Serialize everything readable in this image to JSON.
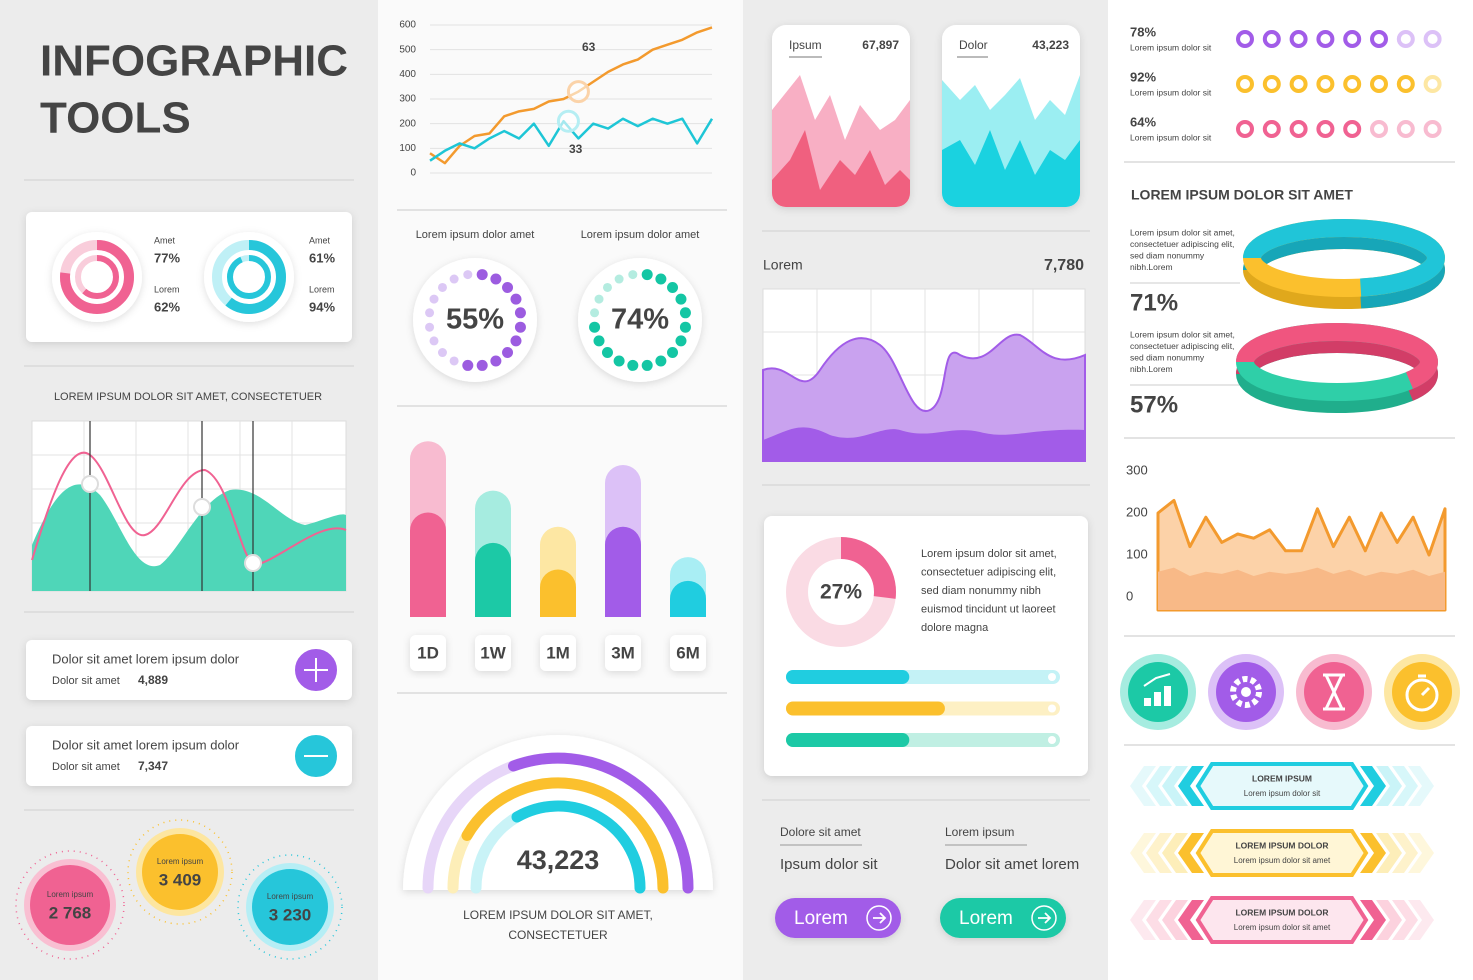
{
  "header": {
    "title_lines": [
      "INFOGRAPHIC",
      "TOOLS"
    ]
  },
  "ring_card": {
    "items": [
      {
        "rings": [
          {
            "label": "Amet",
            "value": 77,
            "value_label": "77%"
          },
          {
            "label": "Lorem",
            "value": 62,
            "value_label": "62%"
          }
        ]
      },
      {
        "rings": [
          {
            "label": "Amet",
            "value": 61,
            "value_label": "61%"
          },
          {
            "label": "Lorem",
            "value": 94,
            "value_label": "94%"
          }
        ]
      }
    ]
  },
  "wave_chart": {
    "title": "LOREM IPSUM DOLOR SIT AMET, CONSECTETUER"
  },
  "stat_rows": [
    {
      "title": "Dolor sit amet lorem ipsum dolor",
      "label": "Dolor sit amet",
      "value": "4,889"
    },
    {
      "title": "Dolor sit amet lorem ipsum dolor",
      "label": "Dolor sit amet",
      "value": "7,347"
    }
  ],
  "bubbles": [
    {
      "label": "Lorem ipsum",
      "value": "2 768"
    },
    {
      "label": "Lorem ipsum",
      "value": "3 409"
    },
    {
      "label": "Lorem ipsum",
      "value": "3 230"
    }
  ],
  "chart_data": [
    {
      "type": "line",
      "categories": [
        null,
        null,
        null,
        null,
        null,
        null,
        null,
        null,
        null,
        null,
        null,
        null,
        null,
        null,
        null,
        null,
        null,
        null,
        null,
        null
      ],
      "series": [
        {
          "color": "#f39a2e",
          "values": [
            80,
            40,
            110,
            150,
            160,
            230,
            250,
            260,
            290,
            300,
            330,
            370,
            410,
            440,
            460,
            500,
            520,
            540,
            570,
            590
          ]
        },
        {
          "color": "#1ec6d6",
          "values": [
            50,
            90,
            120,
            100,
            140,
            170,
            140,
            200,
            110,
            210,
            140,
            200,
            180,
            220,
            190,
            220,
            200,
            220,
            120,
            220
          ]
        }
      ],
      "annotations": [
        "63",
        "33"
      ],
      "ylim": [
        0,
        600
      ],
      "yticks": [
        0,
        100,
        200,
        300,
        400,
        500,
        600
      ],
      "grid": true
    },
    {
      "type": "bar",
      "categories": [
        "1D",
        "1W",
        "1M",
        "3M",
        "6M"
      ],
      "series": [
        {
          "colors": [
            "#f06292",
            "#1cc9a6",
            "#fbc02d",
            "#a25ce8",
            "#20cde0"
          ],
          "values": [
            110,
            78,
            50,
            95,
            38
          ]
        },
        {
          "colors": [
            "#f8bbd0",
            "#a6ece0",
            "#fde7a3",
            "#dcc1f7",
            "#a9eef4"
          ],
          "values": [
            75,
            55,
            45,
            65,
            25
          ]
        }
      ],
      "ylim": [
        0,
        200
      ],
      "stacked": true
    },
    {
      "type": "area",
      "categories": [
        null,
        null,
        null,
        null,
        null,
        null,
        null,
        null,
        null,
        null,
        null,
        null,
        null,
        null,
        null,
        null,
        null,
        null,
        null
      ],
      "series": [
        {
          "color": "#f39a2e",
          "values": [
            200,
            230,
            120,
            190,
            130,
            150,
            140,
            160,
            110,
            110,
            210,
            120,
            190,
            110,
            200,
            130,
            190,
            100,
            210
          ]
        },
        {
          "color": "#f9c79a",
          "values": [
            60,
            70,
            50,
            60,
            55,
            65,
            50,
            60,
            55,
            60,
            70,
            55,
            65,
            50,
            60,
            55,
            65,
            50,
            60
          ]
        }
      ],
      "ylim": [
        0,
        300
      ],
      "yticks": [
        0,
        100,
        200,
        300
      ],
      "grid": false
    }
  ],
  "dot_donuts": [
    {
      "caption": "Lorem ipsum dolor amet",
      "value": 55,
      "value_label": "55%",
      "color": "#9c5ce0",
      "track": "#dcc8f5"
    },
    {
      "caption": "Lorem ipsum dolor amet",
      "value": 74,
      "value_label": "74%",
      "color": "#14c6a4",
      "track": "#b4ece0"
    }
  ],
  "gauge": {
    "value": "43,223",
    "caption_lines": [
      "LOREM IPSUM DOLOR SIT AMET,",
      "CONSECTETUER"
    ]
  },
  "mini_cards": [
    {
      "label": "Ipsum",
      "value": "67,897"
    },
    {
      "label": "Dolor",
      "value": "43,223"
    }
  ],
  "lorem_chart": {
    "label": "Lorem",
    "value": "7,780"
  },
  "donut_card": {
    "value": 27,
    "value_label": "27%",
    "text_lines": [
      "Lorem ipsum dolor sit amet,",
      "consectetuer adipiscing elit,",
      "sed diam nonummy nibh",
      "euismod tincidunt ut laoreet",
      "dolore magna"
    ],
    "bars": [
      45,
      58,
      45
    ]
  },
  "links": [
    {
      "heading": "Dolore sit amet",
      "text": "Ipsum dolor sit",
      "button": "Lorem"
    },
    {
      "heading": "Lorem ipsum",
      "text": "Dolor sit amet lorem",
      "button": "Lorem"
    }
  ],
  "dot_rows": [
    {
      "value": 78,
      "value_label": "78%",
      "caption": "Lorem ipsum dolor sit"
    },
    {
      "value": 92,
      "value_label": "92%",
      "caption": "Lorem ipsum dolor sit"
    },
    {
      "value": 64,
      "value_label": "64%",
      "caption": "Lorem ipsum dolor sit"
    }
  ],
  "ring_section": {
    "title": "LOREM IPSUM DOLOR SIT AMET",
    "items": [
      {
        "text_lines": [
          "Lorem ipsum dolor sit amet,",
          "consectetuer adipiscing elit,",
          "sed diam nonummy",
          "nibh.Lorem"
        ],
        "value": 71,
        "value_label": "71%"
      },
      {
        "text_lines": [
          "Lorem ipsum dolor sit amet,",
          "consectetuer adipiscing elit,",
          "sed diam nonummy",
          "nibh.Lorem"
        ],
        "value": 57,
        "value_label": "57%"
      }
    ]
  },
  "ribbons": [
    {
      "title": "LOREM IPSUM",
      "subtitle": "Lorem ipsum dolor sit"
    },
    {
      "title": "LOREM IPSUM DOLOR",
      "subtitle": "Lorem ipsum dolor sit amet"
    },
    {
      "title": "LOREM IPSUM DOLOR",
      "subtitle": "Lorem ipsum dolor sit amet"
    }
  ]
}
